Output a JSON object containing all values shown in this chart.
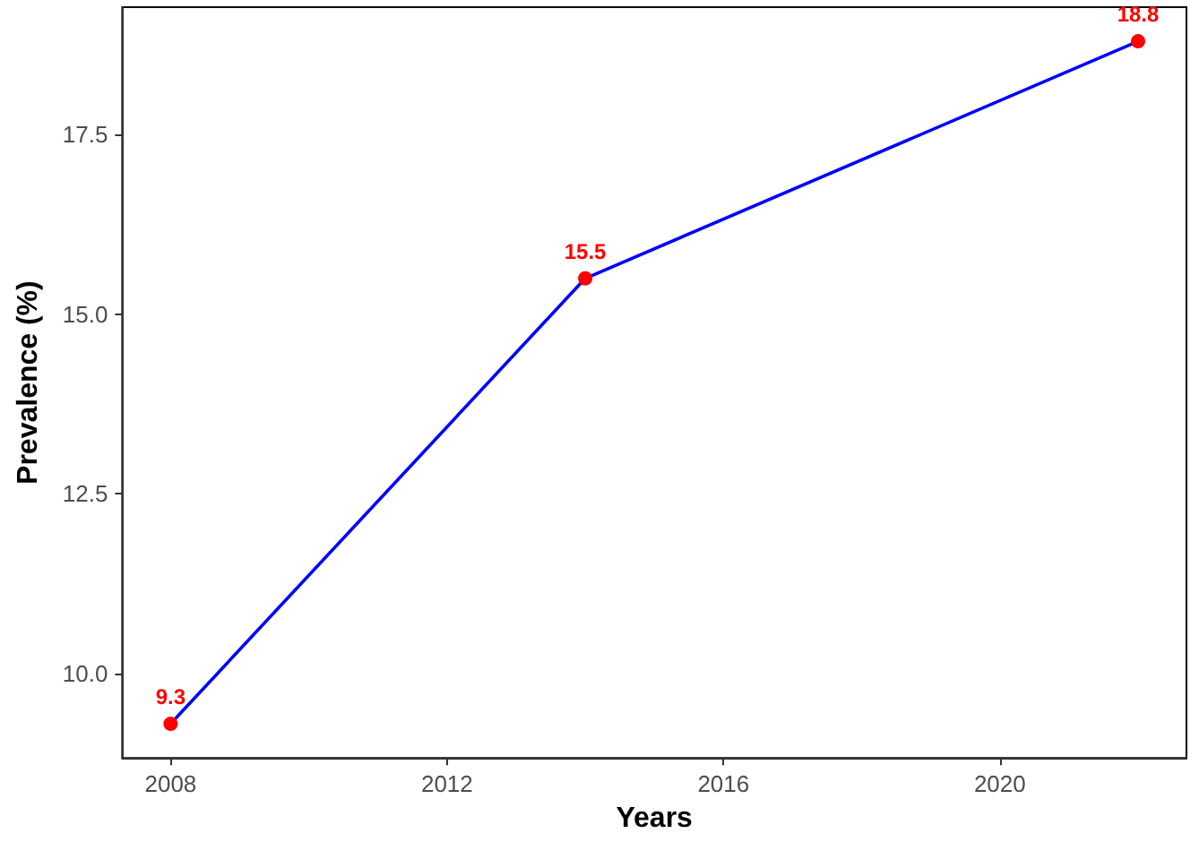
{
  "chart_data": {
    "type": "line",
    "xlabel": "Years",
    "ylabel": "Prevalence (%)",
    "x": [
      2008,
      2014,
      2022
    ],
    "series": [
      {
        "color": "#0000ff",
        "values": [
          9.3,
          15.5,
          18.8
        ],
        "colors": [
          "#ff0000",
          "#ff0000",
          "#ff0000"
        ]
      }
    ],
    "xlim": [
      2007.3,
      2022.7
    ],
    "xticks": [
      2008,
      2012,
      2016,
      2020
    ],
    "ylim": [
      8.825,
      19.275
    ],
    "yticks": [
      {
        "value": 10,
        "label": "10.0"
      },
      {
        "value": 12.5,
        "label": "12.5"
      },
      {
        "value": 15,
        "label": "15.0"
      },
      {
        "value": 17.5,
        "label": "17.5"
      }
    ],
    "marker": "circle",
    "data_labels": true,
    "grid": false
  }
}
